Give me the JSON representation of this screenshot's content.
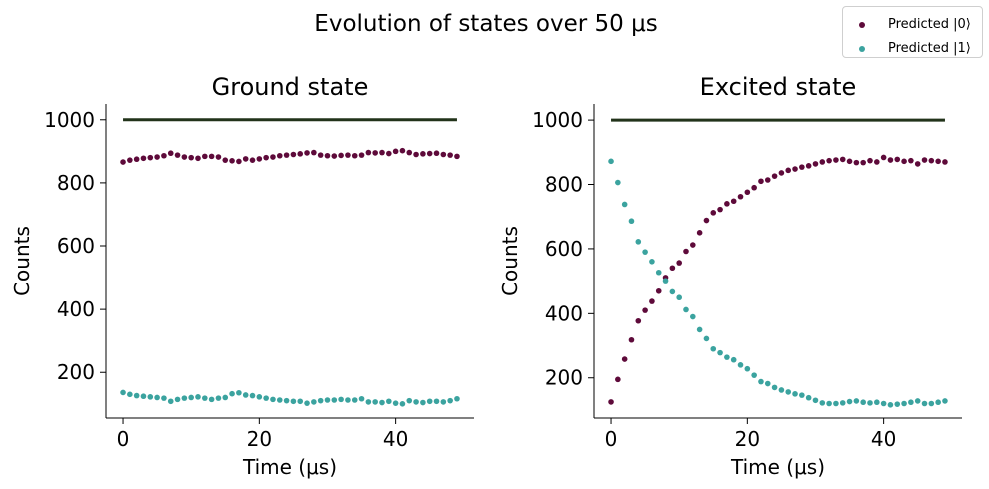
{
  "suptitle": "Evolution of states over 50 μs",
  "legend": [
    {
      "label": "Predicted |0⟩",
      "color": "#5e0a3a"
    },
    {
      "label": "Predicted |1⟩",
      "color": "#3ba39f"
    }
  ],
  "reference_line_color": "#22331a",
  "chart_data": [
    {
      "type": "scatter",
      "title": "Ground state",
      "xlabel": "Time (μs)",
      "ylabel": "Counts",
      "xlim": [
        -2.5,
        51.5
      ],
      "ylim": [
        55,
        1050
      ],
      "xticks": [
        0,
        20,
        40
      ],
      "yticks": [
        200,
        400,
        600,
        800,
        1000
      ],
      "reference_line": {
        "y": 1000,
        "x": [
          0,
          49
        ]
      },
      "x": [
        0,
        1,
        2,
        3,
        4,
        5,
        6,
        7,
        8,
        9,
        10,
        11,
        12,
        13,
        14,
        15,
        16,
        17,
        18,
        19,
        20,
        21,
        22,
        23,
        24,
        25,
        26,
        27,
        28,
        29,
        30,
        31,
        32,
        33,
        34,
        35,
        36,
        37,
        38,
        39,
        40,
        41,
        42,
        43,
        44,
        45,
        46,
        47,
        48,
        49
      ],
      "series": [
        {
          "name": "Predicted |0⟩",
          "color": "#5e0a3a",
          "values": [
            866,
            872,
            875,
            878,
            880,
            882,
            886,
            894,
            888,
            882,
            880,
            878,
            884,
            884,
            882,
            872,
            870,
            868,
            876,
            872,
            876,
            880,
            882,
            886,
            888,
            890,
            892,
            895,
            896,
            888,
            886,
            885,
            887,
            888,
            886,
            888,
            896,
            895,
            896,
            893,
            900,
            902,
            896,
            890,
            892,
            893,
            894,
            890,
            888,
            884
          ]
        },
        {
          "name": "Predicted |1⟩",
          "color": "#3ba39f",
          "values": [
            136,
            130,
            126,
            124,
            122,
            120,
            118,
            108,
            114,
            118,
            120,
            122,
            118,
            114,
            118,
            120,
            132,
            135,
            128,
            126,
            122,
            118,
            114,
            112,
            110,
            108,
            108,
            102,
            106,
            110,
            112,
            112,
            114,
            112,
            112,
            116,
            106,
            106,
            104,
            108,
            102,
            100,
            110,
            106,
            104,
            108,
            108,
            106,
            110,
            116
          ]
        }
      ]
    },
    {
      "type": "scatter",
      "title": "Excited state",
      "xlabel": "Time (μs)",
      "ylabel": "Counts",
      "xlim": [
        -2.5,
        51.5
      ],
      "ylim": [
        75,
        1050
      ],
      "xticks": [
        0,
        20,
        40
      ],
      "yticks": [
        200,
        400,
        600,
        800,
        1000
      ],
      "reference_line": {
        "y": 1000,
        "x": [
          0,
          49
        ]
      },
      "x": [
        0,
        1,
        2,
        3,
        4,
        5,
        6,
        7,
        8,
        9,
        10,
        11,
        12,
        13,
        14,
        15,
        16,
        17,
        18,
        19,
        20,
        21,
        22,
        23,
        24,
        25,
        26,
        27,
        28,
        29,
        30,
        31,
        32,
        33,
        34,
        35,
        36,
        37,
        38,
        39,
        40,
        41,
        42,
        43,
        44,
        45,
        46,
        47,
        48,
        49
      ],
      "series": [
        {
          "name": "Predicted |0⟩",
          "color": "#5e0a3a",
          "values": [
            125,
            195,
            258,
            318,
            377,
            410,
            438,
            470,
            510,
            540,
            556,
            592,
            612,
            650,
            688,
            712,
            722,
            740,
            748,
            762,
            776,
            790,
            810,
            814,
            826,
            836,
            844,
            848,
            854,
            858,
            864,
            870,
            874,
            876,
            878,
            872,
            868,
            868,
            874,
            870,
            884,
            876,
            878,
            872,
            874,
            864,
            876,
            874,
            872,
            870
          ]
        },
        {
          "name": "Predicted |1⟩",
          "color": "#3ba39f",
          "values": [
            872,
            806,
            738,
            686,
            622,
            590,
            560,
            526,
            500,
            468,
            450,
            412,
            390,
            350,
            322,
            290,
            278,
            264,
            256,
            240,
            228,
            208,
            188,
            182,
            170,
            162,
            156,
            150,
            146,
            138,
            130,
            122,
            120,
            120,
            122,
            126,
            128,
            124,
            122,
            124,
            120,
            116,
            118,
            120,
            124,
            128,
            120,
            120,
            124,
            128
          ]
        }
      ]
    }
  ]
}
